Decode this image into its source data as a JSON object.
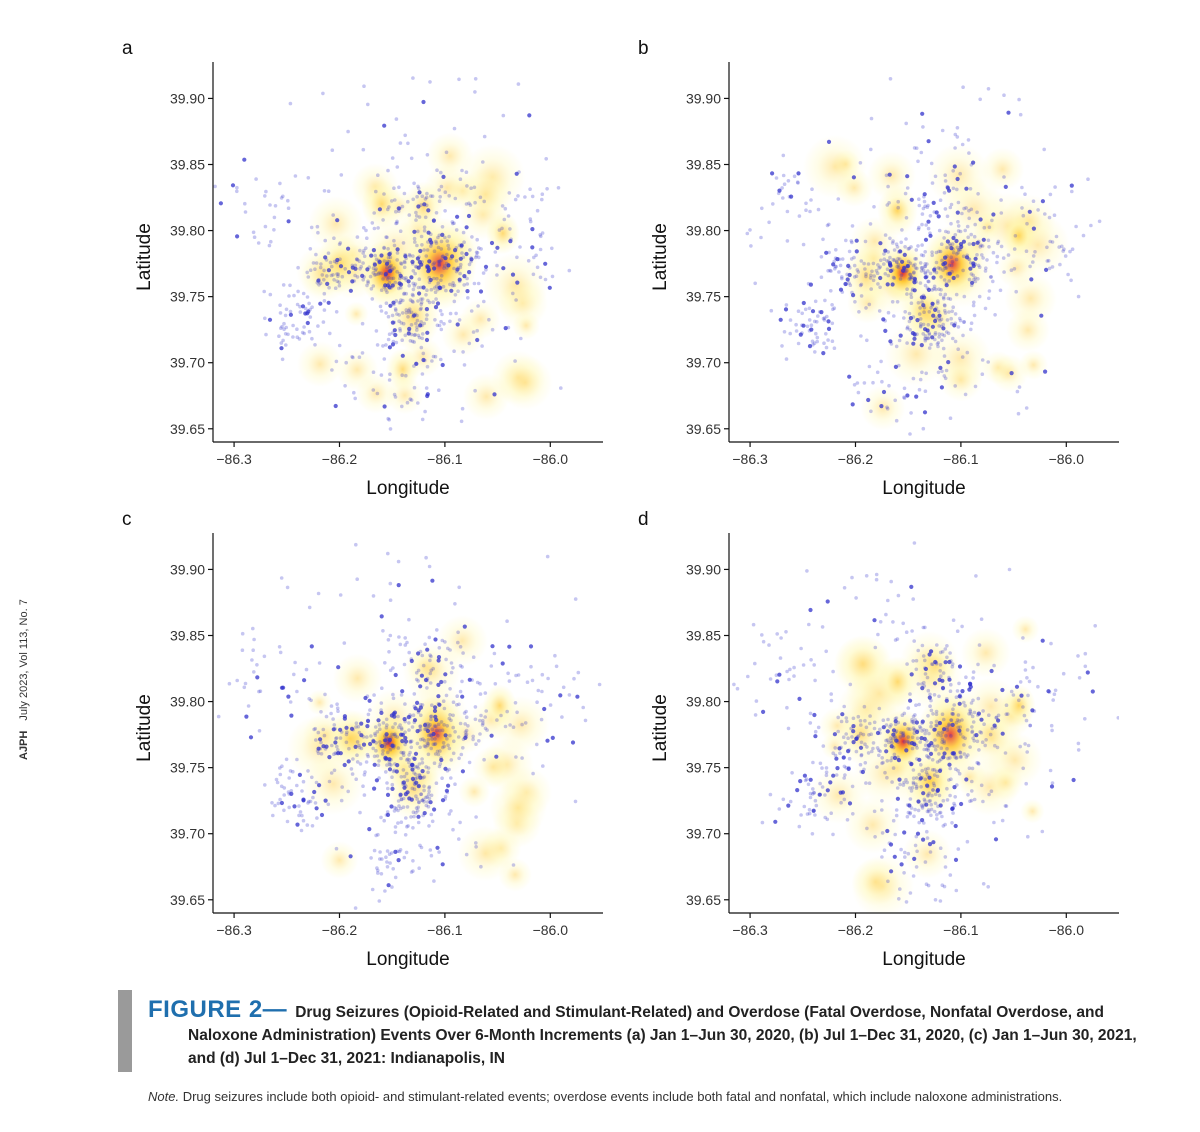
{
  "journal": {
    "name": "AJPH",
    "issue": "July 2023, Vol 113, No. 7"
  },
  "caption": {
    "label": "FIGURE 2—",
    "text": "Drug Seizures (Opioid-Related and Stimulant-Related) and Overdose (Fatal Overdose, Nonfatal Overdose, and Naloxone Administration) Events Over 6-Month Increments (a) Jan 1–Jun 30, 2020, (b) Jul 1–Dec 31, 2020, (c) Jan 1–Jun 30, 2021, and (d) Jul 1–Dec 31, 2021: Indianapolis, IN"
  },
  "note": {
    "label": "Note.",
    "text": "Drug seizures include both opioid- and stimulant-related events; overdose events include both fatal and nonfatal, which include naloxone administrations."
  },
  "colors": {
    "points": "#3333cc",
    "heat_low": "#fff6a0",
    "heat_mid": "#ffc21a",
    "heat_high": "#e0242a"
  },
  "chart_data": [
    {
      "type": "scatter",
      "panel": "a",
      "xlabel": "Longitude",
      "ylabel": "Latitude",
      "xlim": [
        -86.32,
        -85.95
      ],
      "ylim": [
        39.64,
        39.92
      ],
      "xticks": [
        "−86.3",
        "−86.2",
        "−86.1",
        "−86.0"
      ],
      "yticks": [
        "39.65",
        "39.70",
        "39.75",
        "39.80",
        "39.85",
        "39.90"
      ],
      "hotspots": [
        {
          "x": -86.155,
          "y": 39.768,
          "r": 0.016,
          "intensity": 1.0
        },
        {
          "x": -86.105,
          "y": 39.775,
          "r": 0.022,
          "intensity": 0.85
        },
        {
          "x": -86.13,
          "y": 39.735,
          "r": 0.016,
          "intensity": 0.6
        },
        {
          "x": -86.12,
          "y": 39.818,
          "r": 0.012,
          "intensity": 0.45
        },
        {
          "x": -86.16,
          "y": 39.82,
          "r": 0.012,
          "intensity": 0.45
        },
        {
          "x": -86.2,
          "y": 39.775,
          "r": 0.014,
          "intensity": 0.4
        },
        {
          "x": -86.045,
          "y": 39.798,
          "r": 0.01,
          "intensity": 0.5
        },
        {
          "x": -86.14,
          "y": 39.695,
          "r": 0.01,
          "intensity": 0.4
        }
      ]
    },
    {
      "type": "scatter",
      "panel": "b",
      "xlabel": "Longitude",
      "ylabel": "Latitude",
      "xlim": [
        -86.32,
        -85.95
      ],
      "ylim": [
        39.64,
        39.92
      ],
      "xticks": [
        "−86.3",
        "−86.2",
        "−86.1",
        "−86.0"
      ],
      "yticks": [
        "39.65",
        "39.70",
        "39.75",
        "39.80",
        "39.85",
        "39.90"
      ],
      "hotspots": [
        {
          "x": -86.155,
          "y": 39.768,
          "r": 0.014,
          "intensity": 1.0
        },
        {
          "x": -86.108,
          "y": 39.775,
          "r": 0.018,
          "intensity": 0.8
        },
        {
          "x": -86.135,
          "y": 39.74,
          "r": 0.014,
          "intensity": 0.5
        },
        {
          "x": -86.045,
          "y": 39.796,
          "r": 0.01,
          "intensity": 0.6
        },
        {
          "x": -86.19,
          "y": 39.765,
          "r": 0.014,
          "intensity": 0.35
        },
        {
          "x": -86.16,
          "y": 39.815,
          "r": 0.012,
          "intensity": 0.35
        }
      ]
    },
    {
      "type": "scatter",
      "panel": "c",
      "xlabel": "Longitude",
      "ylabel": "Latitude",
      "xlim": [
        -86.32,
        -85.95
      ],
      "ylim": [
        39.64,
        39.92
      ],
      "xticks": [
        "−86.3",
        "−86.2",
        "−86.1",
        "−86.0"
      ],
      "yticks": [
        "39.65",
        "39.70",
        "39.75",
        "39.80",
        "39.85",
        "39.90"
      ],
      "hotspots": [
        {
          "x": -86.153,
          "y": 39.769,
          "r": 0.014,
          "intensity": 1.0
        },
        {
          "x": -86.108,
          "y": 39.776,
          "r": 0.018,
          "intensity": 0.75
        },
        {
          "x": -86.13,
          "y": 39.735,
          "r": 0.016,
          "intensity": 0.45
        },
        {
          "x": -86.048,
          "y": 39.797,
          "r": 0.01,
          "intensity": 0.5
        },
        {
          "x": -86.19,
          "y": 39.772,
          "r": 0.014,
          "intensity": 0.3
        }
      ]
    },
    {
      "type": "scatter",
      "panel": "d",
      "xlabel": "Longitude",
      "ylabel": "Latitude",
      "xlim": [
        -86.32,
        -85.95
      ],
      "ylim": [
        39.64,
        39.92
      ],
      "xticks": [
        "−86.3",
        "−86.2",
        "−86.1",
        "−86.0"
      ],
      "yticks": [
        "39.65",
        "39.70",
        "39.75",
        "39.80",
        "39.85",
        "39.90"
      ],
      "hotspots": [
        {
          "x": -86.155,
          "y": 39.77,
          "r": 0.015,
          "intensity": 1.0
        },
        {
          "x": -86.11,
          "y": 39.775,
          "r": 0.02,
          "intensity": 0.8
        },
        {
          "x": -86.13,
          "y": 39.74,
          "r": 0.015,
          "intensity": 0.5
        },
        {
          "x": -86.045,
          "y": 39.797,
          "r": 0.01,
          "intensity": 0.6
        },
        {
          "x": -86.16,
          "y": 39.815,
          "r": 0.012,
          "intensity": 0.45
        },
        {
          "x": -86.195,
          "y": 39.775,
          "r": 0.014,
          "intensity": 0.35
        }
      ]
    }
  ]
}
